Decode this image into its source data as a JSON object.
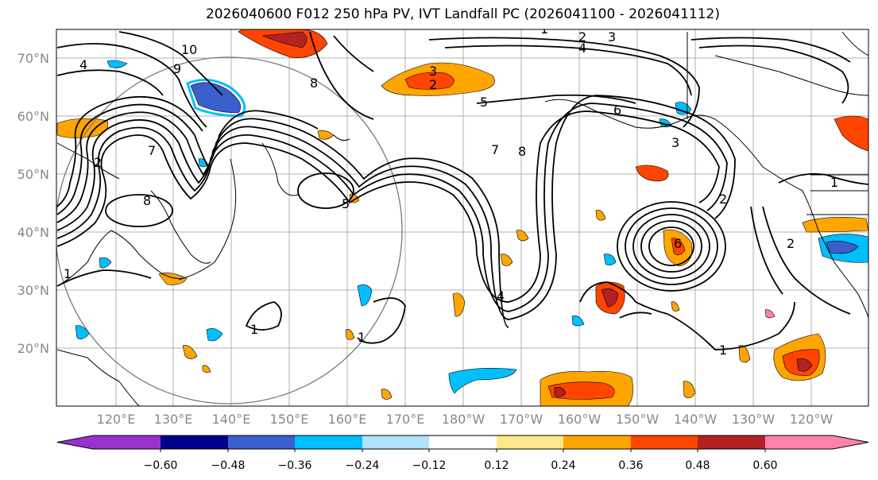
{
  "title": "2026040600 F012 250 hPa PV, IVT Landfall PC (2026041100 - 2026041112)",
  "lat_labels": [
    "70°N",
    "60°N",
    "50°N",
    "40°N",
    "30°N",
    "20°N"
  ],
  "lon_labels": [
    "120°E",
    "130°E",
    "140°E",
    "150°E",
    "160°E",
    "170°E",
    "180°W",
    "170°W",
    "160°W",
    "150°W",
    "140°W",
    "130°W",
    "120°W"
  ],
  "contour_labels": [
    "10",
    "9",
    "4",
    "8",
    "7",
    "2",
    "8",
    "1",
    "3",
    "2",
    "5",
    "3",
    "2",
    "4",
    "6",
    "8",
    "7",
    "5",
    "6",
    "1",
    "1",
    "2",
    "1",
    "4",
    "1",
    "1",
    "3",
    "2"
  ],
  "colorbar": {
    "colors": [
      "#9932cc",
      "#00008b",
      "#3a5fcd",
      "#00bfff",
      "#b0e2ff",
      "#ffffff",
      "#ffe78a",
      "#ffa500",
      "#ff4500",
      "#b22222",
      "#ff82ab"
    ],
    "labels": [
      "−0.60",
      "−0.48",
      "−0.36",
      "−0.24",
      "−0.12",
      "0.12",
      "0.24",
      "0.36",
      "0.48",
      "0.60"
    ]
  }
}
